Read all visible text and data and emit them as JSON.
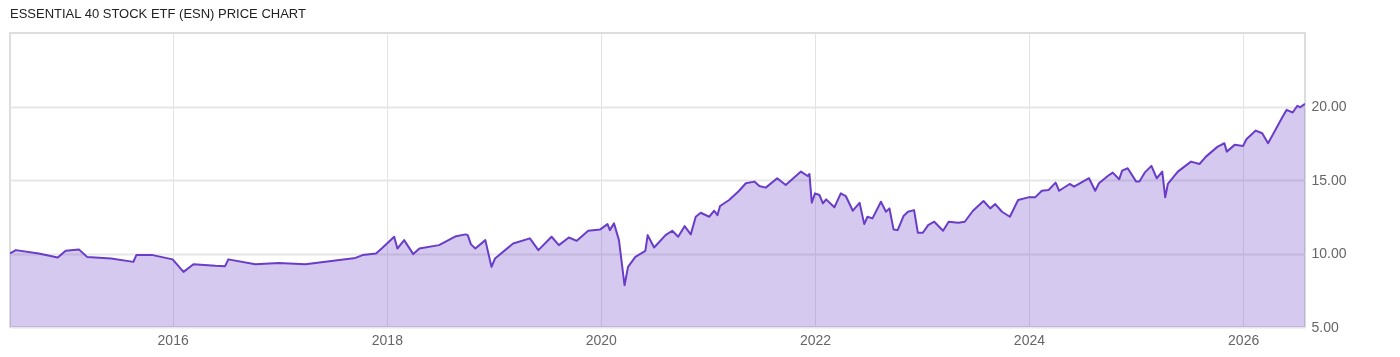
{
  "chart_data": {
    "type": "area",
    "title": "ESSENTIAL 40 STOCK ETF (ESN) PRICE CHART",
    "x": [
      "2014-06-25",
      "2014-07-15",
      "2014-10-01",
      "2014-12-05",
      "2015-01-01",
      "2015-02-15",
      "2015-03-15",
      "2015-06-05",
      "2015-08-20",
      "2015-08-30",
      "2015-10-25",
      "2016-01-01",
      "2016-02-07",
      "2016-03-12",
      "2016-05-26",
      "2016-06-28",
      "2016-07-09",
      "2016-10-09",
      "2016-12-28",
      "2017-03-29",
      "2017-09-16",
      "2017-10-10",
      "2017-11-25",
      "2017-12-18",
      "2018-01-26",
      "2018-02-06",
      "2018-03-01",
      "2018-04-01",
      "2018-04-22",
      "2018-06-28",
      "2018-08-25",
      "2018-09-27",
      "2018-10-04",
      "2018-10-15",
      "2018-10-30",
      "2018-12-03",
      "2018-12-24",
      "2019-01-05",
      "2019-03-08",
      "2019-05-04",
      "2019-06-02",
      "2019-07-17",
      "2019-08-11",
      "2019-09-14",
      "2019-10-11",
      "2019-11-19",
      "2019-12-30",
      "2020-01-24",
      "2020-02-01",
      "2020-02-15",
      "2020-03-03",
      "2020-03-22",
      "2020-04-03",
      "2020-04-28",
      "2020-06-01",
      "2020-06-09",
      "2020-07-01",
      "2020-08-09",
      "2020-09-01",
      "2020-09-21",
      "2020-10-13",
      "2020-11-03",
      "2020-11-20",
      "2020-12-07",
      "2021-01-05",
      "2021-01-22",
      "2021-02-02",
      "2021-02-11",
      "2021-03-14",
      "2021-04-17",
      "2021-05-10",
      "2021-06-08",
      "2021-06-25",
      "2021-07-17",
      "2021-08-25",
      "2021-09-23",
      "2021-11-14",
      "2021-12-07",
      "2021-12-13",
      "2021-12-21",
      "2022-01-01",
      "2022-01-16",
      "2022-01-28",
      "2022-02-08",
      "2022-03-08",
      "2022-03-30",
      "2022-04-16",
      "2022-05-10",
      "2022-06-02",
      "2022-06-18",
      "2022-06-29",
      "2022-07-16",
      "2022-08-14",
      "2022-08-31",
      "2022-09-12",
      "2022-09-26",
      "2022-10-10",
      "2022-10-30",
      "2022-11-14",
      "2022-12-05",
      "2022-12-18",
      "2023-01-04",
      "2023-01-22",
      "2023-02-12",
      "2023-03-14",
      "2023-04-02",
      "2023-05-05",
      "2023-05-27",
      "2023-06-24",
      "2023-07-30",
      "2023-08-22",
      "2023-09-08",
      "2023-10-01",
      "2023-10-28",
      "2023-11-25",
      "2023-12-30",
      "2024-01-22",
      "2024-02-14",
      "2024-03-08",
      "2024-04-01",
      "2024-04-13",
      "2024-05-19",
      "2024-06-03",
      "2024-07-24",
      "2024-08-14",
      "2024-08-27",
      "2024-09-26",
      "2024-10-13",
      "2024-11-04",
      "2024-11-14",
      "2024-12-03",
      "2025-01-01",
      "2025-01-12",
      "2025-01-30",
      "2025-02-22",
      "2025-03-12",
      "2025-03-31",
      "2025-04-10",
      "2025-04-19",
      "2025-05-23",
      "2025-07-07",
      "2025-08-05",
      "2025-08-27",
      "2025-10-06",
      "2025-10-29",
      "2025-11-06",
      "2025-12-03",
      "2026-01-01",
      "2026-01-12",
      "2026-02-13",
      "2026-03-07",
      "2026-03-27",
      "2026-04-18",
      "2026-05-16",
      "2026-05-29",
      "2026-06-19",
      "2026-07-05",
      "2026-07-14",
      "2026-07-31"
    ],
    "series": [
      {
        "color": "#6a3dc9",
        "values": [
          10.0,
          10.23,
          10.0,
          9.73,
          10.18,
          10.28,
          9.77,
          9.66,
          9.43,
          9.89,
          9.89,
          9.6,
          8.75,
          9.27,
          9.16,
          9.14,
          9.6,
          9.27,
          9.36,
          9.27,
          9.7,
          9.89,
          10.0,
          10.41,
          11.14,
          10.34,
          10.91,
          9.96,
          10.34,
          10.57,
          11.18,
          11.3,
          11.25,
          10.62,
          10.34,
          10.91,
          9.09,
          9.66,
          10.68,
          11.03,
          10.23,
          11.14,
          10.57,
          11.09,
          10.86,
          11.55,
          11.64,
          12.0,
          11.59,
          12.05,
          10.91,
          7.84,
          9.09,
          9.77,
          10.18,
          11.25,
          10.41,
          11.25,
          11.55,
          11.14,
          11.86,
          11.3,
          12.5,
          12.77,
          12.5,
          12.91,
          12.61,
          13.23,
          13.64,
          14.27,
          14.78,
          14.89,
          14.59,
          14.48,
          15.12,
          14.66,
          15.57,
          15.27,
          15.41,
          13.45,
          14.09,
          13.98,
          13.41,
          13.68,
          13.14,
          14.09,
          13.91,
          12.91,
          13.45,
          12.0,
          12.5,
          12.39,
          13.52,
          12.84,
          13.07,
          11.64,
          11.59,
          12.55,
          12.84,
          12.95,
          11.41,
          11.41,
          11.93,
          12.16,
          11.55,
          12.16,
          12.09,
          12.16,
          12.91,
          13.57,
          13.07,
          13.36,
          12.84,
          12.5,
          13.64,
          13.82,
          13.82,
          14.27,
          14.32,
          14.82,
          14.27,
          14.73,
          14.55,
          15.12,
          14.27,
          14.78,
          15.27,
          15.5,
          15.05,
          15.64,
          15.8,
          14.89,
          14.89,
          15.5,
          15.96,
          15.12,
          15.57,
          13.82,
          14.73,
          15.57,
          16.25,
          16.09,
          16.59,
          17.27,
          17.5,
          16.93,
          17.39,
          17.32,
          17.77,
          18.36,
          18.18,
          17.5,
          18.3,
          19.32,
          19.77,
          19.59,
          20.05,
          19.95,
          20.18
        ]
      }
    ],
    "xlim": [
      "2014-06-25",
      "2026-07-31"
    ],
    "xticks": [
      "2016",
      "2018",
      "2020",
      "2022",
      "2024",
      "2026"
    ],
    "ylim": [
      5,
      25
    ],
    "yticks": [
      {
        "value": 5,
        "label": "5.00"
      },
      {
        "value": 10,
        "label": "10.00"
      },
      {
        "value": 15,
        "label": "15.00"
      },
      {
        "value": 20,
        "label": "20.00"
      }
    ],
    "grid": true
  }
}
